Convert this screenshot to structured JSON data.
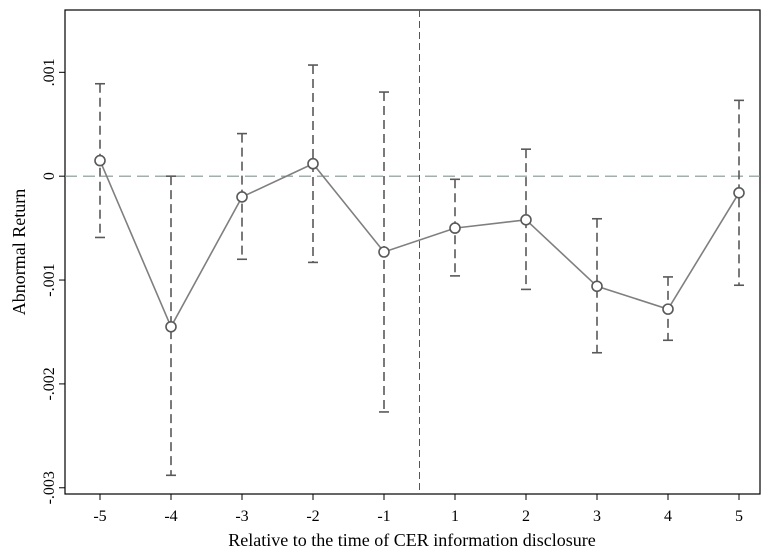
{
  "chart_data": {
    "type": "line",
    "title": "",
    "xlabel": "Relative to the time of CER information disclosure",
    "ylabel": "Abnormal Return",
    "x": [
      -5,
      -4,
      -3,
      -2,
      -1,
      1,
      2,
      3,
      4,
      5
    ],
    "x_tick_labels": [
      "-5",
      "-4",
      "-3",
      "-2",
      "-1",
      "1",
      "2",
      "3",
      "4",
      "5"
    ],
    "y_ticks": [
      -0.003,
      -0.002,
      -0.001,
      0,
      0.001
    ],
    "y_tick_labels": [
      "-.003",
      "-.002",
      "-.001",
      "0",
      ".001"
    ],
    "ylim": [
      -0.00306,
      0.0016
    ],
    "reference_lines": {
      "horizontal_y": 0,
      "vertical_between_categories": [
        -1,
        1
      ]
    },
    "grid": false,
    "legend": "none",
    "series": [
      {
        "values": [
          0.00015,
          -0.00145,
          -0.0002,
          0.00012,
          -0.00073,
          -0.0005,
          -0.00042,
          -0.00106,
          -0.00128,
          -0.00016
        ],
        "ci_upper": [
          0.00089,
          0.0,
          0.00041,
          0.00107,
          0.00081,
          -3e-05,
          0.00026,
          -0.00041,
          -0.00097,
          0.00073
        ],
        "ci_lower": [
          -0.00059,
          -0.00288,
          -0.0008,
          -0.00083,
          -0.00227,
          -0.00096,
          -0.00109,
          -0.0017,
          -0.00158,
          -0.00105
        ]
      }
    ],
    "colors": {
      "line": "#7f7f7f",
      "ci": "#595959",
      "zero_line": "#7a9a8e",
      "vline": "#555555",
      "frame": "#000000"
    }
  }
}
